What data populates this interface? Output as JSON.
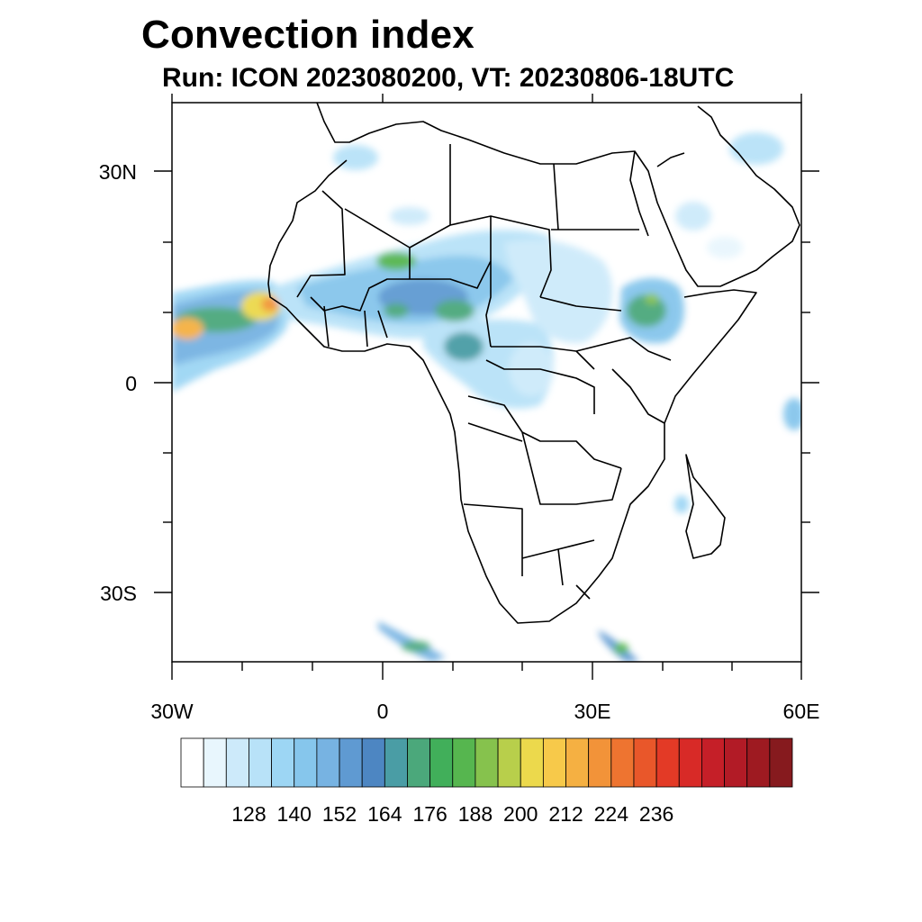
{
  "title": "Convection index",
  "subtitle": "Run: ICON 2023080200,  VT: 20230806-18UTC",
  "lat_labels": [
    "30N",
    "0",
    "30S"
  ],
  "lon_labels": [
    "30W",
    "0",
    "30E",
    "60E"
  ],
  "colorbar": {
    "labels": [
      "128",
      "140",
      "152",
      "164",
      "176",
      "188",
      "200",
      "212",
      "224",
      "236"
    ],
    "colors": [
      "#ffffff",
      "#e8f6fd",
      "#cdeafa",
      "#b8e2f8",
      "#9dd6f4",
      "#86c6ec",
      "#77b3e2",
      "#5f9ad2",
      "#4d86c2",
      "#4a9da5",
      "#4ba87b",
      "#41af5a",
      "#56b64f",
      "#86c24d",
      "#b8cf4b",
      "#ecd94c",
      "#f7c94a",
      "#f5b042",
      "#f29339",
      "#ee7430",
      "#e9572a",
      "#e33a26",
      "#d82a27",
      "#c51f28",
      "#b21b26",
      "#9e1a21",
      "#861a1e"
    ]
  }
}
